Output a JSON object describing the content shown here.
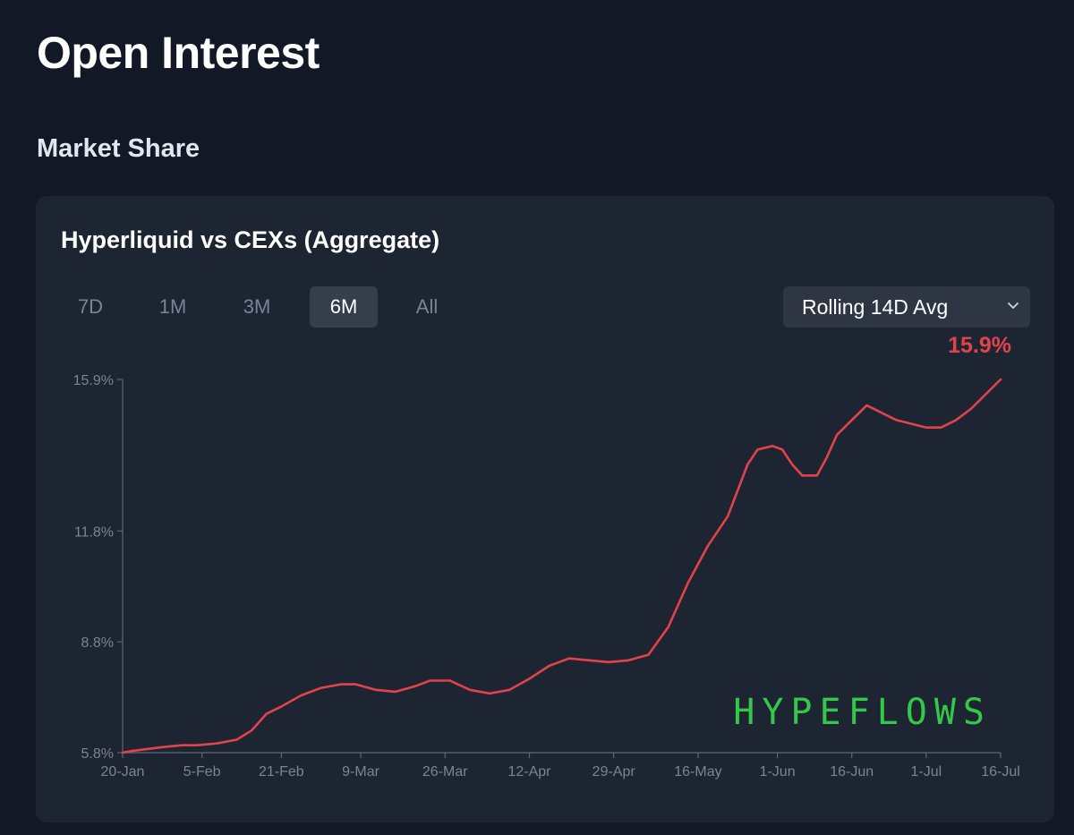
{
  "page": {
    "title": "Open Interest",
    "section_title": "Market Share"
  },
  "card": {
    "title": "Hyperliquid vs CEXs (Aggregate)",
    "ranges": [
      "7D",
      "1M",
      "3M",
      "6M",
      "All"
    ],
    "active_range": "6M",
    "average_select": {
      "value": "Rolling 14D Avg"
    },
    "current_value_label": "15.9%",
    "watermark": "HYPEFLOWS"
  },
  "colors": {
    "background": "#121826",
    "card": "#1d2532",
    "line": "#e2434b",
    "watermark": "#34c84a",
    "axis": "#7b8394"
  },
  "chart_data": {
    "type": "line",
    "title": "Hyperliquid vs CEXs (Aggregate)",
    "xlabel": "",
    "ylabel": "",
    "ylim": [
      5.8,
      15.9
    ],
    "y_ticks": [
      5.8,
      8.8,
      11.8,
      15.9
    ],
    "y_tick_labels": [
      "5.8%",
      "8.8%",
      "11.8%",
      "15.9%"
    ],
    "x_range": [
      "2025-01-20",
      "2025-07-16"
    ],
    "x_ticks": [
      "2025-01-20",
      "2025-02-05",
      "2025-02-21",
      "2025-03-09",
      "2025-03-26",
      "2025-04-12",
      "2025-04-29",
      "2025-05-16",
      "2025-06-01",
      "2025-06-16",
      "2025-07-01",
      "2025-07-16"
    ],
    "x_tick_labels": [
      "20-Jan",
      "5-Feb",
      "21-Feb",
      "9-Mar",
      "26-Mar",
      "12-Apr",
      "29-Apr",
      "16-May",
      "1-Jun",
      "16-Jun",
      "1-Jul",
      "16-Jul"
    ],
    "grid": false,
    "series": [
      {
        "x": [
          "2025-01-20",
          "2025-01-22",
          "2025-01-25",
          "2025-01-28",
          "2025-02-01",
          "2025-02-04",
          "2025-02-08",
          "2025-02-12",
          "2025-02-15",
          "2025-02-18",
          "2025-02-21",
          "2025-02-25",
          "2025-03-01",
          "2025-03-05",
          "2025-03-08",
          "2025-03-12",
          "2025-03-16",
          "2025-03-20",
          "2025-03-23",
          "2025-03-27",
          "2025-03-31",
          "2025-04-04",
          "2025-04-08",
          "2025-04-12",
          "2025-04-16",
          "2025-04-20",
          "2025-04-24",
          "2025-04-28",
          "2025-05-02",
          "2025-05-06",
          "2025-05-10",
          "2025-05-14",
          "2025-05-18",
          "2025-05-22",
          "2025-05-26",
          "2025-05-28",
          "2025-05-31",
          "2025-06-02",
          "2025-06-04",
          "2025-06-06",
          "2025-06-09",
          "2025-06-11",
          "2025-06-13",
          "2025-06-16",
          "2025-06-19",
          "2025-06-22",
          "2025-06-25",
          "2025-06-28",
          "2025-07-01",
          "2025-07-04",
          "2025-07-07",
          "2025-07-10",
          "2025-07-13",
          "2025-07-16"
        ],
        "values": [
          5.8,
          5.85,
          5.9,
          5.95,
          6.0,
          6.0,
          6.05,
          6.15,
          6.4,
          6.85,
          7.05,
          7.35,
          7.55,
          7.65,
          7.65,
          7.5,
          7.45,
          7.6,
          7.75,
          7.75,
          7.5,
          7.4,
          7.5,
          7.8,
          8.15,
          8.35,
          8.3,
          8.25,
          8.3,
          8.45,
          9.2,
          10.4,
          11.4,
          12.2,
          13.6,
          14.0,
          14.1,
          14.0,
          13.6,
          13.3,
          13.3,
          13.8,
          14.4,
          14.8,
          15.2,
          15.0,
          14.8,
          14.7,
          14.6,
          14.6,
          14.8,
          15.1,
          15.5,
          15.9
        ]
      }
    ]
  }
}
